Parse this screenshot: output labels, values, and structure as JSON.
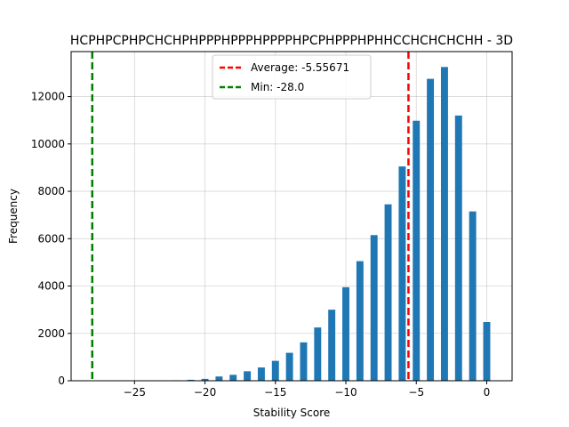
{
  "chart_data": {
    "type": "bar",
    "title": "HCPHPCPHPCHCHPHPPPHPPPHPPPPHPCPHPPPHPHHCCHCHCHCHH - 3D",
    "xlabel": "Stability Score",
    "ylabel": "Frequency",
    "xlim": [
      -29.5,
      1.8
    ],
    "ylim": [
      0,
      13900
    ],
    "xticks": [
      -25,
      -20,
      -15,
      -10,
      -5,
      0
    ],
    "xtick_labels": [
      "−25",
      "−20",
      "−15",
      "−10",
      "−5",
      "0"
    ],
    "yticks": [
      0,
      2000,
      4000,
      6000,
      8000,
      10000,
      12000
    ],
    "yticks_labels": [
      "0",
      "2000",
      "4000",
      "6000",
      "8000",
      "10000",
      "12000"
    ],
    "grid": true,
    "bar_color": "#1f77b4",
    "bins": [
      {
        "x": -28,
        "value": 0
      },
      {
        "x": -27,
        "value": 0
      },
      {
        "x": -26,
        "value": 0
      },
      {
        "x": -25,
        "value": 0
      },
      {
        "x": -24,
        "value": 0
      },
      {
        "x": -23,
        "value": 0
      },
      {
        "x": -22,
        "value": 20
      },
      {
        "x": -21,
        "value": 40
      },
      {
        "x": -20,
        "value": 80
      },
      {
        "x": -19,
        "value": 180
      },
      {
        "x": -18,
        "value": 250
      },
      {
        "x": -17,
        "value": 400
      },
      {
        "x": -16,
        "value": 560
      },
      {
        "x": -15,
        "value": 840
      },
      {
        "x": -14,
        "value": 1180
      },
      {
        "x": -13,
        "value": 1620
      },
      {
        "x": -12,
        "value": 2250
      },
      {
        "x": -11,
        "value": 3000
      },
      {
        "x": -10,
        "value": 3950
      },
      {
        "x": -9,
        "value": 5050
      },
      {
        "x": -8,
        "value": 6150
      },
      {
        "x": -7,
        "value": 7450
      },
      {
        "x": -6,
        "value": 9050
      },
      {
        "x": -5,
        "value": 10980
      },
      {
        "x": -4,
        "value": 12750
      },
      {
        "x": -3,
        "value": 13250
      },
      {
        "x": -2,
        "value": 11200
      },
      {
        "x": -1,
        "value": 7150
      },
      {
        "x": 0,
        "value": 2480
      }
    ],
    "reference_lines": [
      {
        "label": "Average: -5.55671",
        "value": -5.55671,
        "color": "#ff0000"
      },
      {
        "label": "Min: -28.0",
        "value": -28.0,
        "color": "#008000"
      }
    ],
    "legend_position": "top-center"
  }
}
